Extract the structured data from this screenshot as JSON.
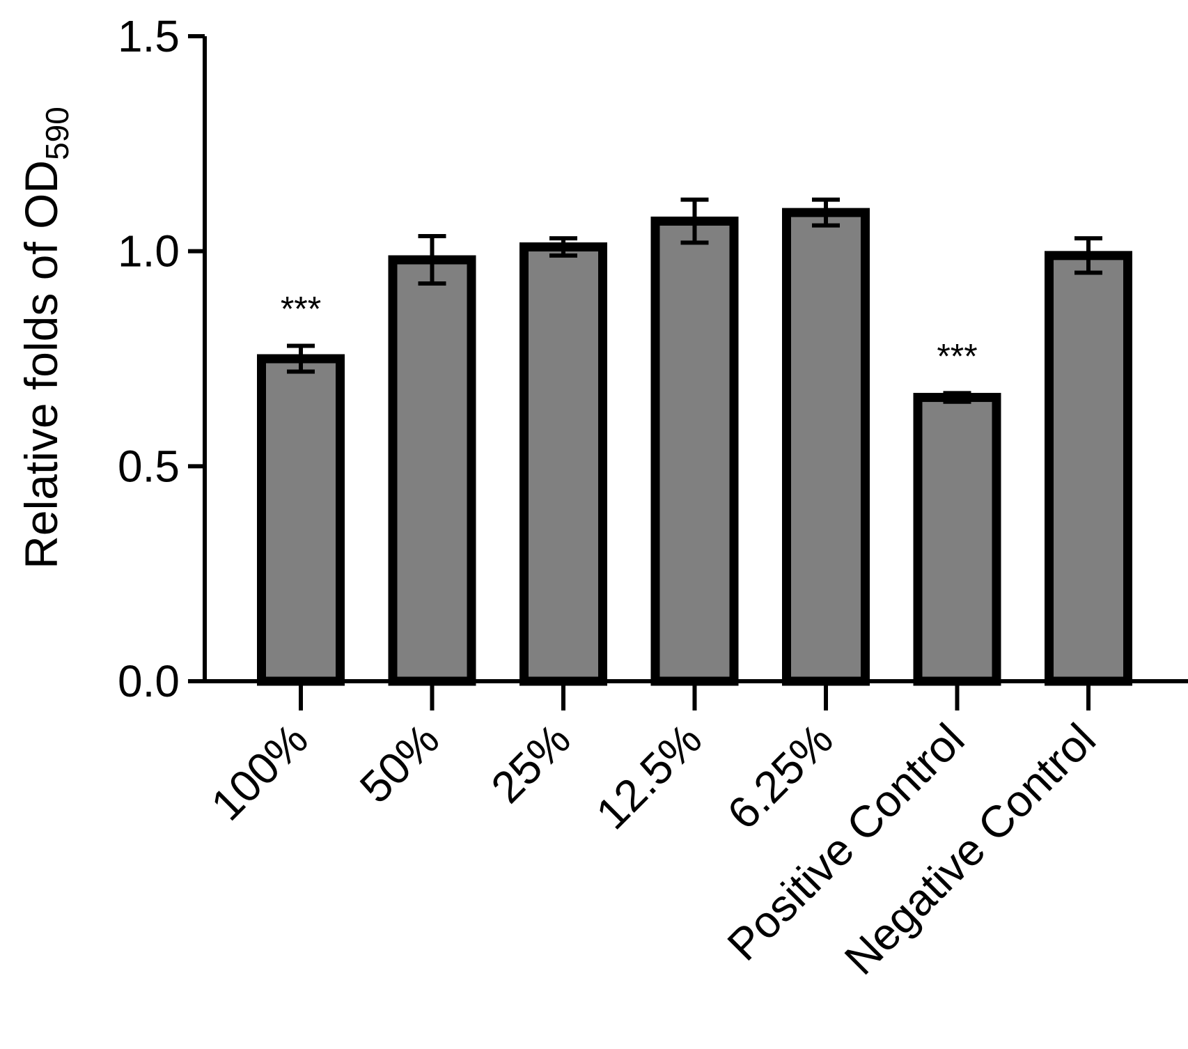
{
  "chart_data": {
    "type": "bar",
    "title": "",
    "xlabel": "",
    "ylabel": {
      "main": "Relative folds of OD",
      "subscript": "590"
    },
    "ylim": [
      0,
      1.5
    ],
    "yticks": [
      "0.0",
      "0.5",
      "1.0",
      "1.5"
    ],
    "ytick_values": [
      0,
      0.5,
      1.0,
      1.5
    ],
    "categories": [
      "100%",
      "50%",
      "25%",
      "12.5%",
      "6.25%",
      "Positive Control",
      "Negative Control"
    ],
    "values": [
      0.75,
      0.98,
      1.01,
      1.07,
      1.09,
      0.66,
      0.99
    ],
    "error": [
      0.03,
      0.055,
      0.02,
      0.05,
      0.03,
      0.01,
      0.04
    ],
    "significance": [
      "***",
      "",
      "",
      "",
      "",
      "***",
      ""
    ],
    "bar_color": "#808080",
    "edge_color": "#000000",
    "grid": false,
    "legend": "none"
  }
}
